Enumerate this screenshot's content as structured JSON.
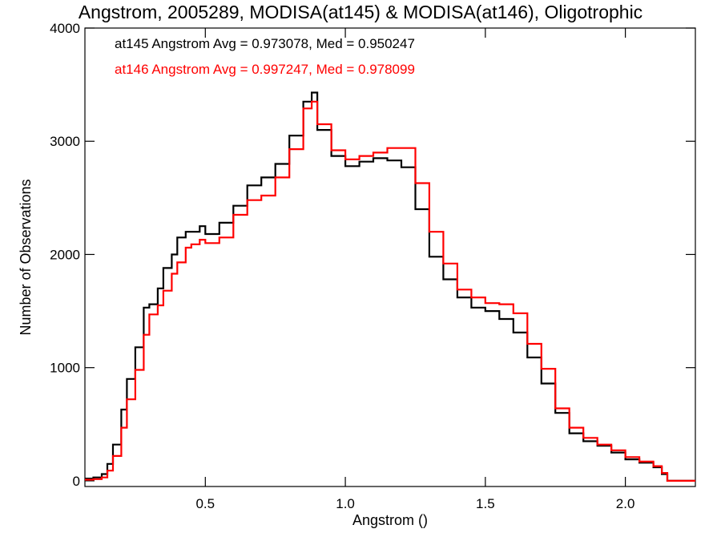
{
  "chart_data": {
    "type": "line",
    "title": "Angstrom, 2005289, MODISA(at145) & MODISA(at146), Oligotrophic",
    "xlabel": "Angstrom ()",
    "ylabel": "Number of Observations",
    "xlim": [
      0.07,
      2.25
    ],
    "ylim": [
      -50,
      4000
    ],
    "xticks": [
      0.5,
      1.0,
      1.5,
      2.0
    ],
    "xtick_labels": [
      "0.5",
      "1.0",
      "1.5",
      "2.0"
    ],
    "yticks": [
      0,
      1000,
      2000,
      3000,
      4000
    ],
    "ytick_labels": [
      "0",
      "1000",
      "2000",
      "3000",
      "4000"
    ],
    "grid": false,
    "legend_position": "top-left",
    "series": [
      {
        "name": "at145 Angstrom Avg = 0.973078, Med = 0.950247",
        "color": "#000000",
        "x": [
          0.07,
          0.1,
          0.13,
          0.15,
          0.17,
          0.2,
          0.22,
          0.25,
          0.28,
          0.3,
          0.33,
          0.35,
          0.38,
          0.4,
          0.43,
          0.45,
          0.48,
          0.5,
          0.55,
          0.6,
          0.65,
          0.7,
          0.75,
          0.8,
          0.85,
          0.88,
          0.9,
          0.95,
          1.0,
          1.05,
          1.1,
          1.15,
          1.2,
          1.25,
          1.3,
          1.35,
          1.4,
          1.45,
          1.5,
          1.55,
          1.6,
          1.65,
          1.7,
          1.75,
          1.8,
          1.85,
          1.9,
          1.95,
          2.0,
          2.05,
          2.1,
          2.13,
          2.15,
          2.2,
          2.25
        ],
        "values": [
          20,
          30,
          60,
          150,
          320,
          630,
          900,
          1180,
          1530,
          1560,
          1700,
          1880,
          2000,
          2150,
          2200,
          2200,
          2250,
          2180,
          2280,
          2430,
          2610,
          2680,
          2800,
          3050,
          3350,
          3430,
          3100,
          2870,
          2780,
          2820,
          2850,
          2830,
          2770,
          2400,
          1980,
          1780,
          1620,
          1530,
          1500,
          1430,
          1310,
          1090,
          860,
          600,
          420,
          350,
          310,
          250,
          190,
          160,
          120,
          60,
          0,
          0,
          0
        ]
      },
      {
        "name": "at146 Angstrom Avg = 0.997247, Med = 0.978099",
        "color": "#ff0000",
        "x": [
          0.07,
          0.1,
          0.13,
          0.15,
          0.17,
          0.2,
          0.22,
          0.25,
          0.28,
          0.3,
          0.33,
          0.35,
          0.38,
          0.4,
          0.43,
          0.45,
          0.48,
          0.5,
          0.55,
          0.6,
          0.65,
          0.7,
          0.75,
          0.8,
          0.85,
          0.88,
          0.9,
          0.95,
          1.0,
          1.05,
          1.1,
          1.15,
          1.2,
          1.25,
          1.3,
          1.35,
          1.4,
          1.45,
          1.5,
          1.55,
          1.6,
          1.65,
          1.7,
          1.75,
          1.8,
          1.85,
          1.9,
          1.95,
          2.0,
          2.05,
          2.1,
          2.13,
          2.15,
          2.2,
          2.25
        ],
        "values": [
          10,
          15,
          30,
          90,
          220,
          470,
          720,
          980,
          1290,
          1470,
          1550,
          1680,
          1830,
          1930,
          2060,
          2090,
          2130,
          2100,
          2150,
          2350,
          2480,
          2520,
          2680,
          2930,
          3290,
          3350,
          3150,
          2920,
          2840,
          2870,
          2900,
          2940,
          2940,
          2630,
          2200,
          1920,
          1690,
          1620,
          1570,
          1560,
          1480,
          1210,
          990,
          640,
          470,
          380,
          320,
          270,
          210,
          170,
          130,
          70,
          0,
          0,
          0
        ]
      }
    ]
  }
}
